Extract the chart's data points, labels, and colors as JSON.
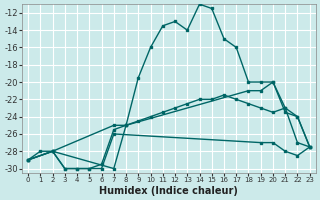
{
  "xlabel": "Humidex (Indice chaleur)",
  "bg_color": "#cceaea",
  "grid_color": "#ffffff",
  "line_color": "#006666",
  "xlim": [
    -0.5,
    23.5
  ],
  "ylim": [
    -30.5,
    -11
  ],
  "yticks": [
    -30,
    -28,
    -26,
    -24,
    -22,
    -20,
    -18,
    -16,
    -14,
    -12
  ],
  "xticks": [
    0,
    1,
    2,
    3,
    4,
    5,
    6,
    7,
    8,
    9,
    10,
    11,
    12,
    13,
    14,
    15,
    16,
    17,
    18,
    19,
    20,
    21,
    22,
    23
  ],
  "series": [
    {
      "x": [
        0,
        1,
        2,
        7,
        8,
        9,
        10,
        11,
        12,
        13,
        14,
        15,
        16,
        17,
        18,
        19,
        20,
        21,
        22,
        23
      ],
      "y": [
        -29,
        -28,
        -28,
        -30,
        -25,
        -19.5,
        -16,
        -13.5,
        -13,
        -14,
        -11,
        -11.5,
        -15,
        -16,
        -20,
        -20,
        -20,
        -23.5,
        -24,
        -27.5
      ]
    },
    {
      "x": [
        0,
        2,
        7,
        8,
        18,
        19,
        20,
        21,
        22,
        23
      ],
      "y": [
        -29,
        -28,
        -25,
        -25,
        -21,
        -21,
        -20,
        -23,
        -24,
        -27.5
      ]
    },
    {
      "x": [
        0,
        2,
        3,
        4,
        5,
        6,
        7,
        8,
        9,
        10,
        11,
        12,
        13,
        14,
        15,
        16,
        17,
        18,
        19,
        20,
        21,
        22,
        23
      ],
      "y": [
        -29,
        -28,
        -30,
        -30,
        -30,
        -29.5,
        -25.5,
        -25,
        -24.5,
        -24,
        -23.5,
        -23,
        -22.5,
        -22,
        -22,
        -21.5,
        -22,
        -22.5,
        -23,
        -23.5,
        -23,
        -27,
        -27.5
      ]
    },
    {
      "x": [
        0,
        2,
        3,
        4,
        5,
        6,
        7,
        19,
        20,
        21,
        22,
        23
      ],
      "y": [
        -29,
        -28,
        -30,
        -30,
        -30,
        -30,
        -26,
        -27,
        -27,
        -28,
        -28.5,
        -27.5
      ]
    }
  ]
}
